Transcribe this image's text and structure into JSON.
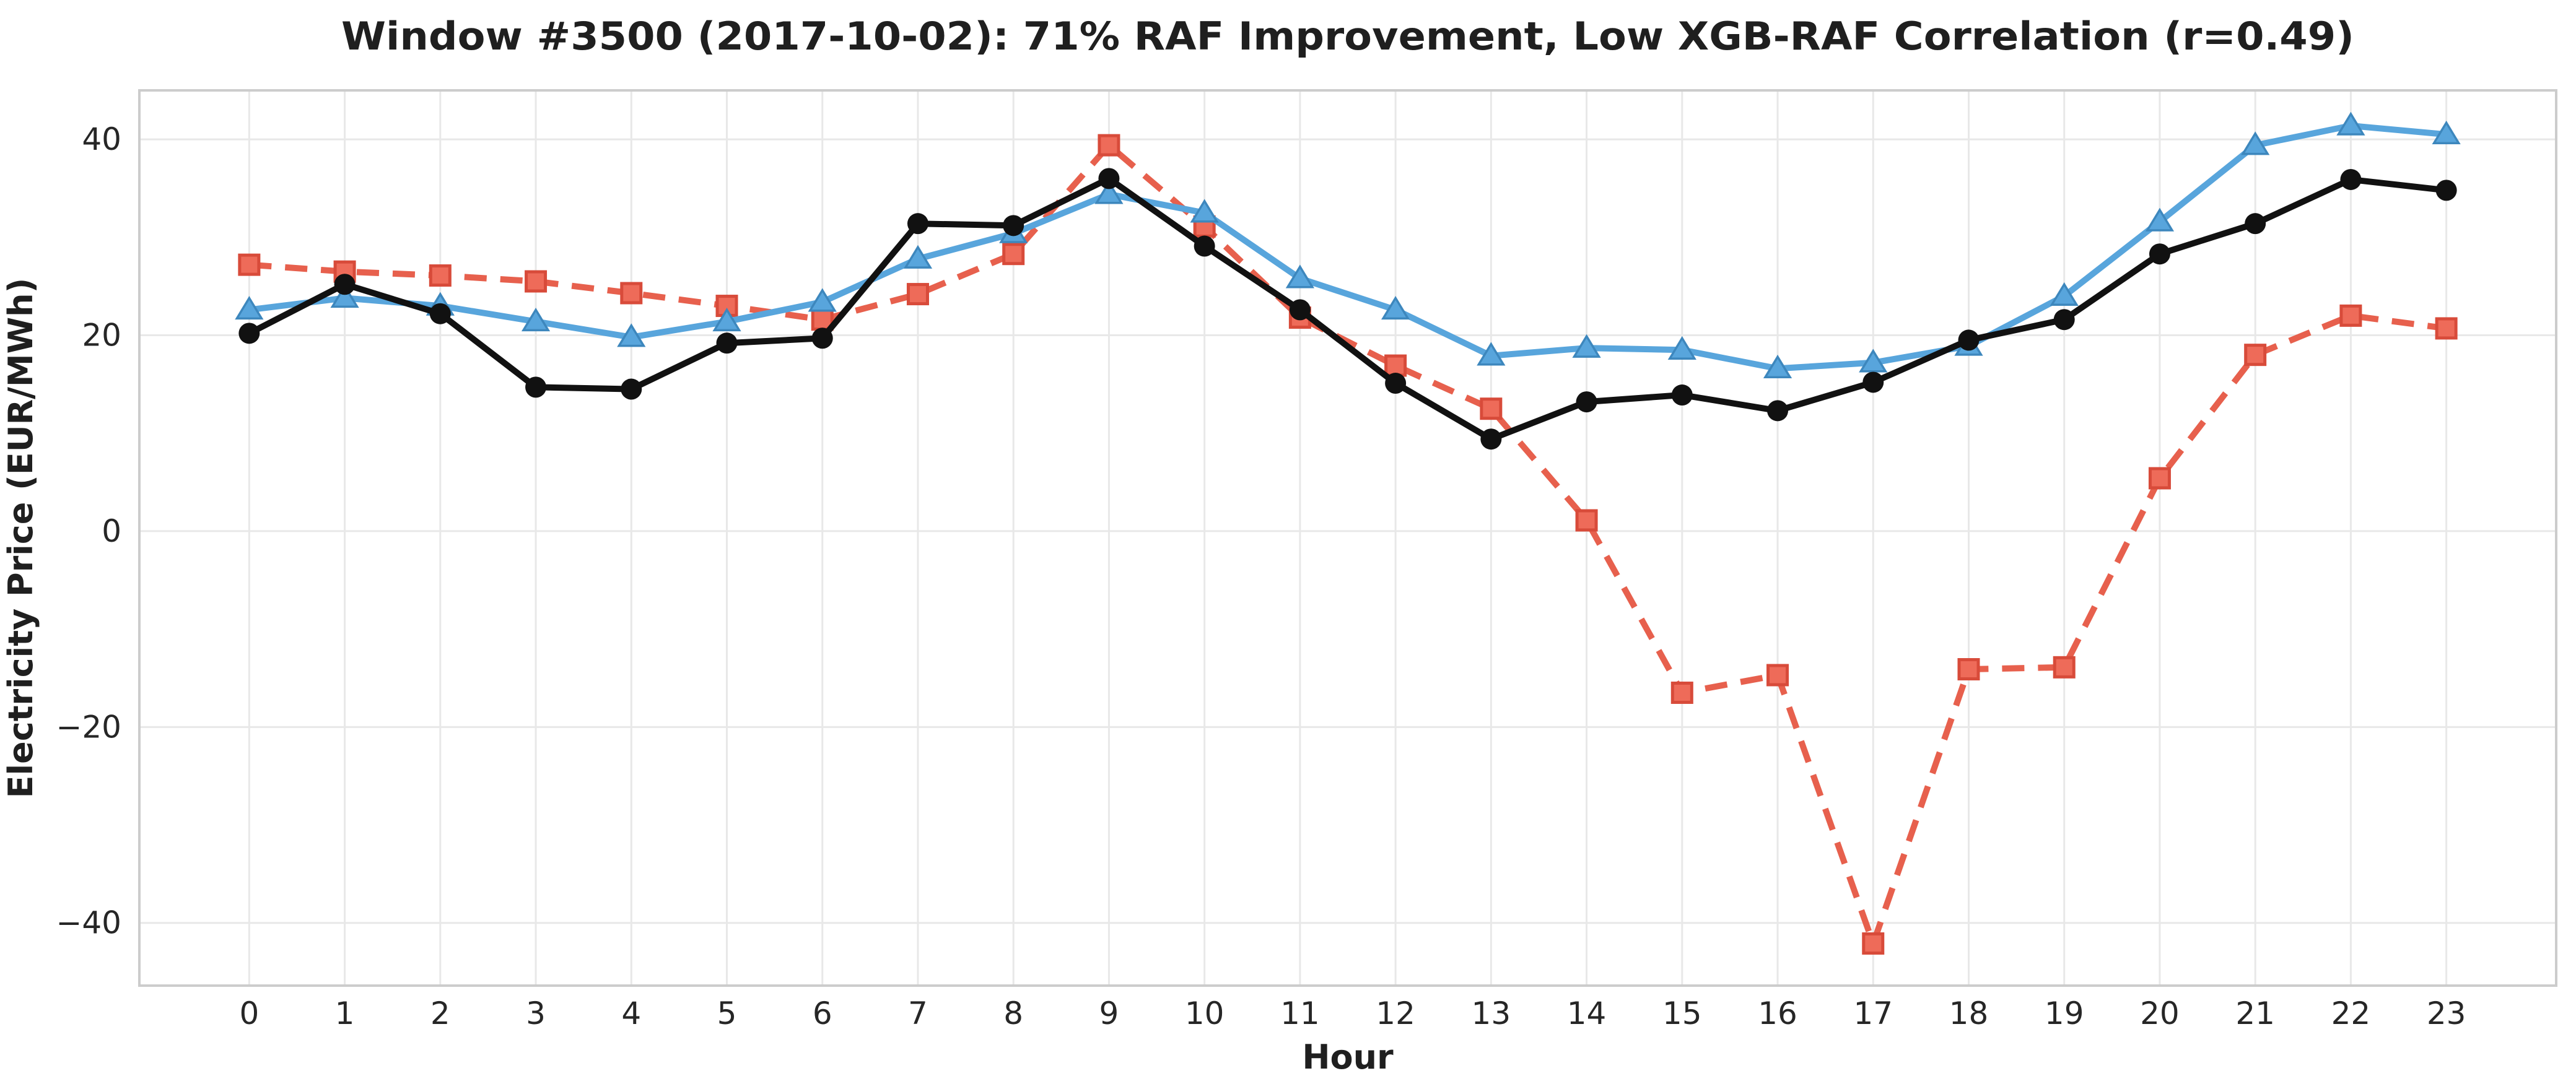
{
  "title": "Window #3500 (2017-10-02): 71% RAF Improvement, Low XGB-RAF Correlation (r=0.49)",
  "axes": {
    "x_label": "Hour",
    "y_label": "Electricity Price (EUR/MWh)",
    "x_tick_labels": [
      "0",
      "1",
      "2",
      "3",
      "4",
      "5",
      "6",
      "7",
      "8",
      "9",
      "10",
      "11",
      "12",
      "13",
      "14",
      "15",
      "16",
      "17",
      "18",
      "19",
      "20",
      "21",
      "22",
      "23"
    ],
    "y_tick_labels": [
      "40",
      "20",
      "0",
      "−20",
      "−40"
    ],
    "y_tick_values": [
      40,
      20,
      0,
      -20,
      -40
    ]
  },
  "colors": {
    "background": "#ffffff",
    "grid": "#e8e8e8",
    "frame": "#cccccc",
    "title_text": "#1f1f1f",
    "tick_text": "#262626",
    "series_black": "#111111",
    "series_blue": "#58a5dc",
    "series_blue_edge": "#3d87bd",
    "series_red": "#e7604d",
    "series_red_fill": "#ee6b59",
    "series_red_edge": "#d84b3a"
  },
  "chart_data": {
    "type": "line",
    "title": "Window #3500 (2017-10-02): 71% RAF Improvement, Low XGB-RAF Correlation (r=0.49)",
    "xlabel": "Hour",
    "ylabel": "Electricity Price (EUR/MWh)",
    "x": [
      0,
      1,
      2,
      3,
      4,
      5,
      6,
      7,
      8,
      9,
      10,
      11,
      12,
      13,
      14,
      15,
      16,
      17,
      18,
      19,
      20,
      21,
      22,
      23
    ],
    "series": [
      {
        "name": "black series (solid line, circle markers)",
        "color": "#111111",
        "marker": "circle",
        "marker_fill": "#111111",
        "marker_edge": "#111111",
        "line_style": "solid",
        "z_order": 3,
        "values": [
          20.2,
          25.2,
          22.2,
          14.7,
          14.5,
          19.2,
          19.7,
          31.4,
          31.2,
          36.0,
          29.1,
          22.6,
          15.1,
          9.4,
          13.2,
          13.9,
          12.3,
          15.2,
          19.5,
          21.6,
          28.3,
          31.4,
          35.9,
          34.8
        ]
      },
      {
        "name": "blue series (solid line, triangle markers)",
        "color": "#58a5dc",
        "marker": "triangle",
        "marker_fill": "#58a5dc",
        "marker_edge": "#3d87bd",
        "line_style": "solid",
        "z_order": 2,
        "values": [
          22.6,
          23.8,
          23.0,
          21.4,
          19.8,
          21.4,
          23.4,
          27.8,
          30.4,
          34.4,
          32.5,
          25.8,
          22.6,
          17.9,
          18.7,
          18.5,
          16.6,
          17.2,
          18.9,
          24.0,
          31.6,
          39.4,
          41.4,
          40.5
        ]
      },
      {
        "name": "red series (dashed line, square markers)",
        "color": "#e7604d",
        "marker": "square",
        "marker_fill": "#ee6b59",
        "marker_edge": "#d84b3a",
        "line_style": "dashed",
        "z_order": 1,
        "values": [
          27.2,
          26.5,
          26.1,
          25.5,
          24.3,
          23.0,
          21.6,
          24.2,
          28.3,
          39.4,
          31.1,
          21.8,
          16.9,
          12.5,
          1.1,
          -16.5,
          -14.7,
          -42.1,
          -14.1,
          -13.9,
          5.4,
          18.0,
          22.0,
          20.7
        ]
      }
    ],
    "xlim": [
      -1.15,
      24.15
    ],
    "ylim": [
      -46.4,
      45.0
    ],
    "grid": true,
    "legend": "none"
  }
}
